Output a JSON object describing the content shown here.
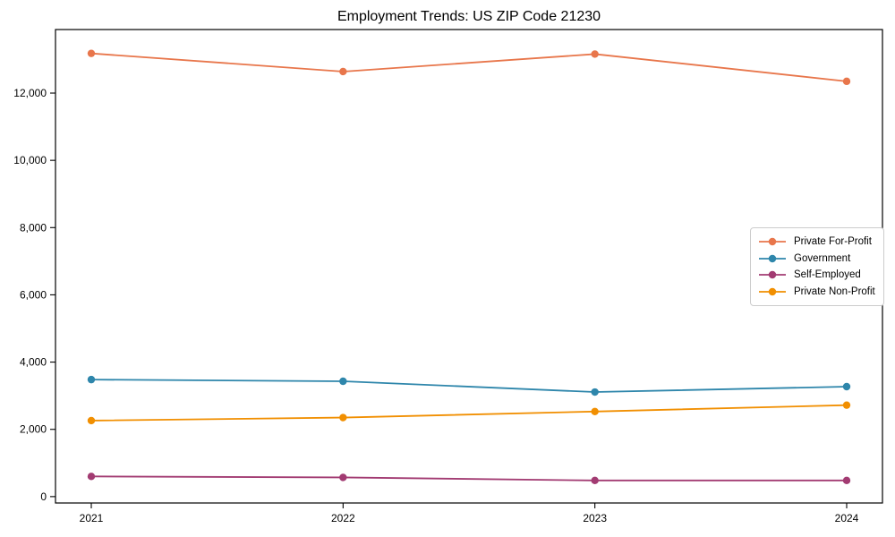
{
  "title": "Employment Trends: US ZIP Code 21230",
  "background_color": "#ffffff",
  "axis_color": "#000000",
  "chart_data": {
    "type": "line",
    "title": "Employment Trends: US ZIP Code 21230",
    "x": [
      "2021",
      "2022",
      "2023",
      "2024"
    ],
    "series": [
      {
        "name": "Private For-Profit",
        "color": "#E8764B",
        "values": [
          13180,
          12640,
          13160,
          12350
        ]
      },
      {
        "name": "Government",
        "color": "#2E86AB",
        "values": [
          3480,
          3430,
          3110,
          3270
        ]
      },
      {
        "name": "Self-Employed",
        "color": "#A23B72",
        "values": [
          600,
          570,
          480,
          480
        ]
      },
      {
        "name": "Private Non-Profit",
        "color": "#F18F01",
        "values": [
          2260,
          2350,
          2530,
          2720
        ]
      }
    ],
    "xlabel": "",
    "ylabel": "",
    "ylim": [
      -190,
      13890
    ],
    "yticks": [
      0,
      2000,
      4000,
      6000,
      8000,
      10000,
      12000
    ],
    "ytick_labels": [
      "0",
      "2,000",
      "4,000",
      "6,000",
      "8,000",
      "10,000",
      "12,000"
    ],
    "grid": false,
    "legend_position": "center right",
    "marker": "circle",
    "tick_label_fontsize_px": 12,
    "title_fontsize_px": 16
  }
}
